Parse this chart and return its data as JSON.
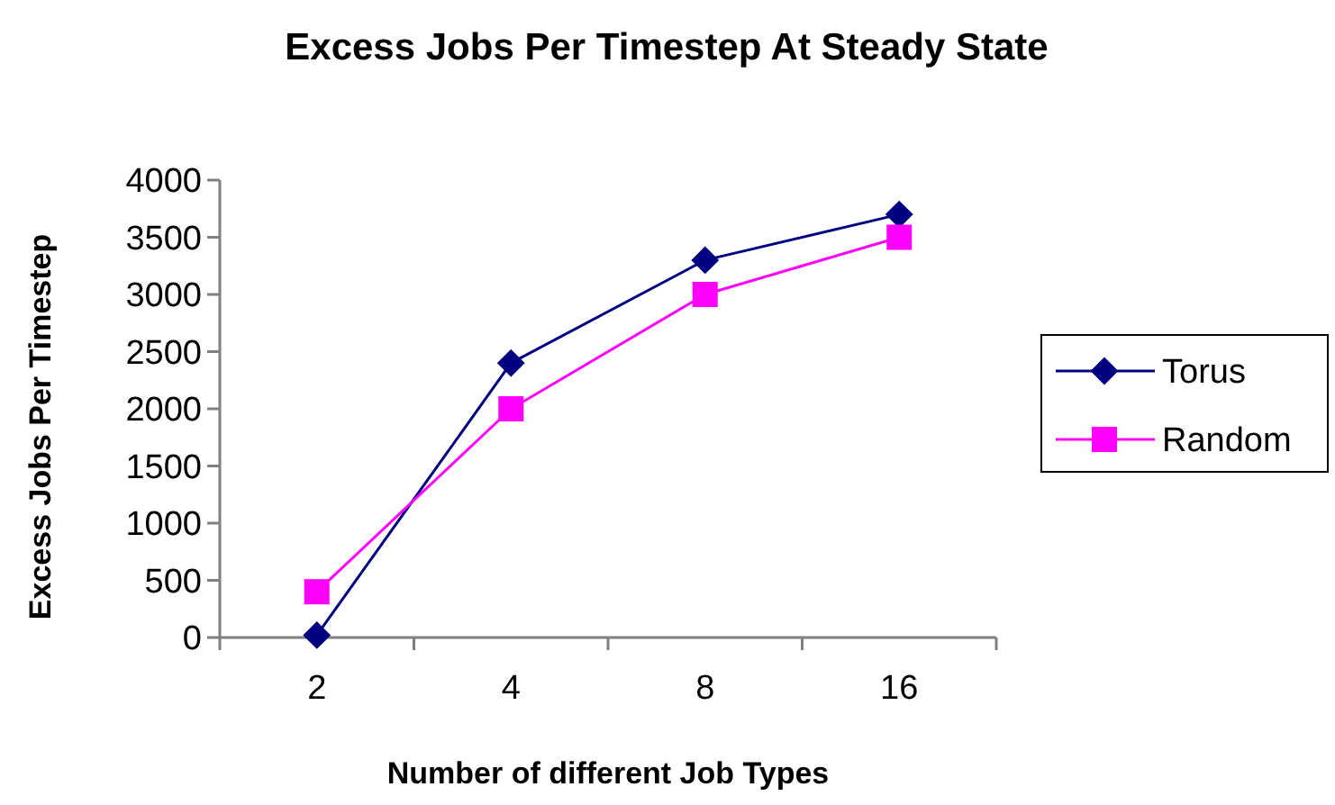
{
  "chart_data": {
    "type": "line",
    "title": "Excess Jobs Per Timestep At Steady State",
    "xlabel": "Number of different Job Types",
    "ylabel": "Excess Jobs Per Timestep",
    "categories": [
      "2",
      "4",
      "8",
      "16"
    ],
    "series": [
      {
        "name": "Torus",
        "color": "#000080",
        "marker": "diamond",
        "values": [
          20,
          2400,
          3300,
          3700
        ]
      },
      {
        "name": "Random",
        "color": "#ff00ff",
        "marker": "square",
        "values": [
          400,
          2000,
          3000,
          3500
        ]
      }
    ],
    "ylim": [
      0,
      4000
    ],
    "yticks": [
      0,
      500,
      1000,
      1500,
      2000,
      2500,
      3000,
      3500,
      4000
    ],
    "grid": false,
    "legend": "right",
    "line_style": "solid"
  }
}
